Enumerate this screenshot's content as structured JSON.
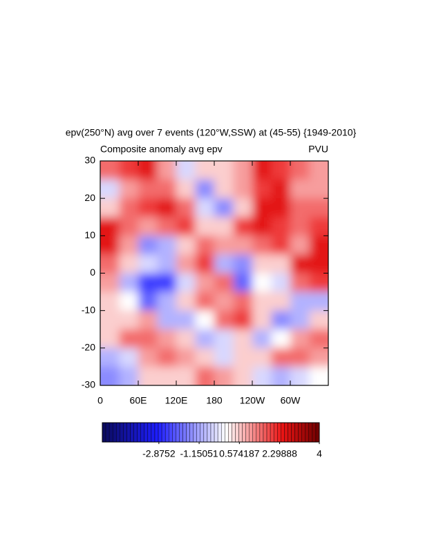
{
  "chart_data": {
    "type": "heatmap",
    "title": "epv(250°N) avg over 7 events (120°W,SSW) at (45-55) {1949-2010}",
    "subtitle_left": "Composite anomaly avg epv",
    "subtitle_right": "PVU",
    "xlim": [
      0,
      360
    ],
    "xticks": [
      0,
      {
        "value": 60,
        "label": "60E"
      },
      {
        "value": 120,
        "label": "120E"
      },
      180,
      {
        "value": 240,
        "label": "120W"
      },
      {
        "value": 300,
        "label": "60W"
      }
    ],
    "ylim": [
      -30,
      30
    ],
    "yticks": [
      -30,
      -20,
      -10,
      0,
      10,
      20,
      30
    ],
    "clim": [
      -5.3,
      4
    ],
    "cticks": [
      -2.8752,
      -1.15051,
      0.574187,
      2.29888,
      4
    ],
    "z": [
      [
        1.5,
        2,
        2.5,
        1,
        -0.5,
        0.5,
        0.5,
        1,
        2.5,
        2,
        1.5,
        1
      ],
      [
        -0.5,
        1,
        1.5,
        1.5,
        0.5,
        -1.5,
        0.5,
        1,
        2,
        2.5,
        1,
        1
      ],
      [
        0.5,
        1.5,
        2,
        2.5,
        1.5,
        -0.5,
        -1.5,
        0.5,
        2.5,
        2.5,
        1.5,
        1.5
      ],
      [
        2.5,
        1.5,
        1,
        1.5,
        2,
        0.5,
        0.5,
        2,
        2.5,
        2,
        1.5,
        2
      ],
      [
        2.5,
        1,
        -1.5,
        -1,
        0.5,
        1.5,
        1,
        1,
        1.5,
        2,
        1,
        2.5
      ],
      [
        1.5,
        0.5,
        -0.5,
        -1,
        1,
        2,
        -1,
        -1.5,
        0.5,
        0.5,
        2.5,
        2.5
      ],
      [
        1,
        -1,
        -2.5,
        -2.5,
        -0.5,
        1,
        1.5,
        -2,
        0,
        -0.5,
        1.5,
        2
      ],
      [
        0.5,
        0,
        -2,
        -1,
        0.5,
        1.5,
        1,
        1.5,
        0.5,
        0.5,
        -1,
        -1
      ],
      [
        0.5,
        0.5,
        1,
        -1,
        -1,
        0,
        1.5,
        2,
        0.5,
        -1.5,
        -1,
        0.5
      ],
      [
        0.5,
        1.5,
        1.5,
        1,
        0.5,
        -1,
        -0.5,
        0.5,
        -1,
        0,
        1,
        1.5
      ],
      [
        -1,
        -0.5,
        1,
        1.5,
        1,
        0.5,
        -0.5,
        0.5,
        0.5,
        1.5,
        1.5,
        1
      ],
      [
        -1.5,
        -1,
        0.5,
        0.5,
        0.5,
        1.5,
        1,
        0.5,
        -0.5,
        -1,
        -0.5,
        0
      ]
    ]
  }
}
